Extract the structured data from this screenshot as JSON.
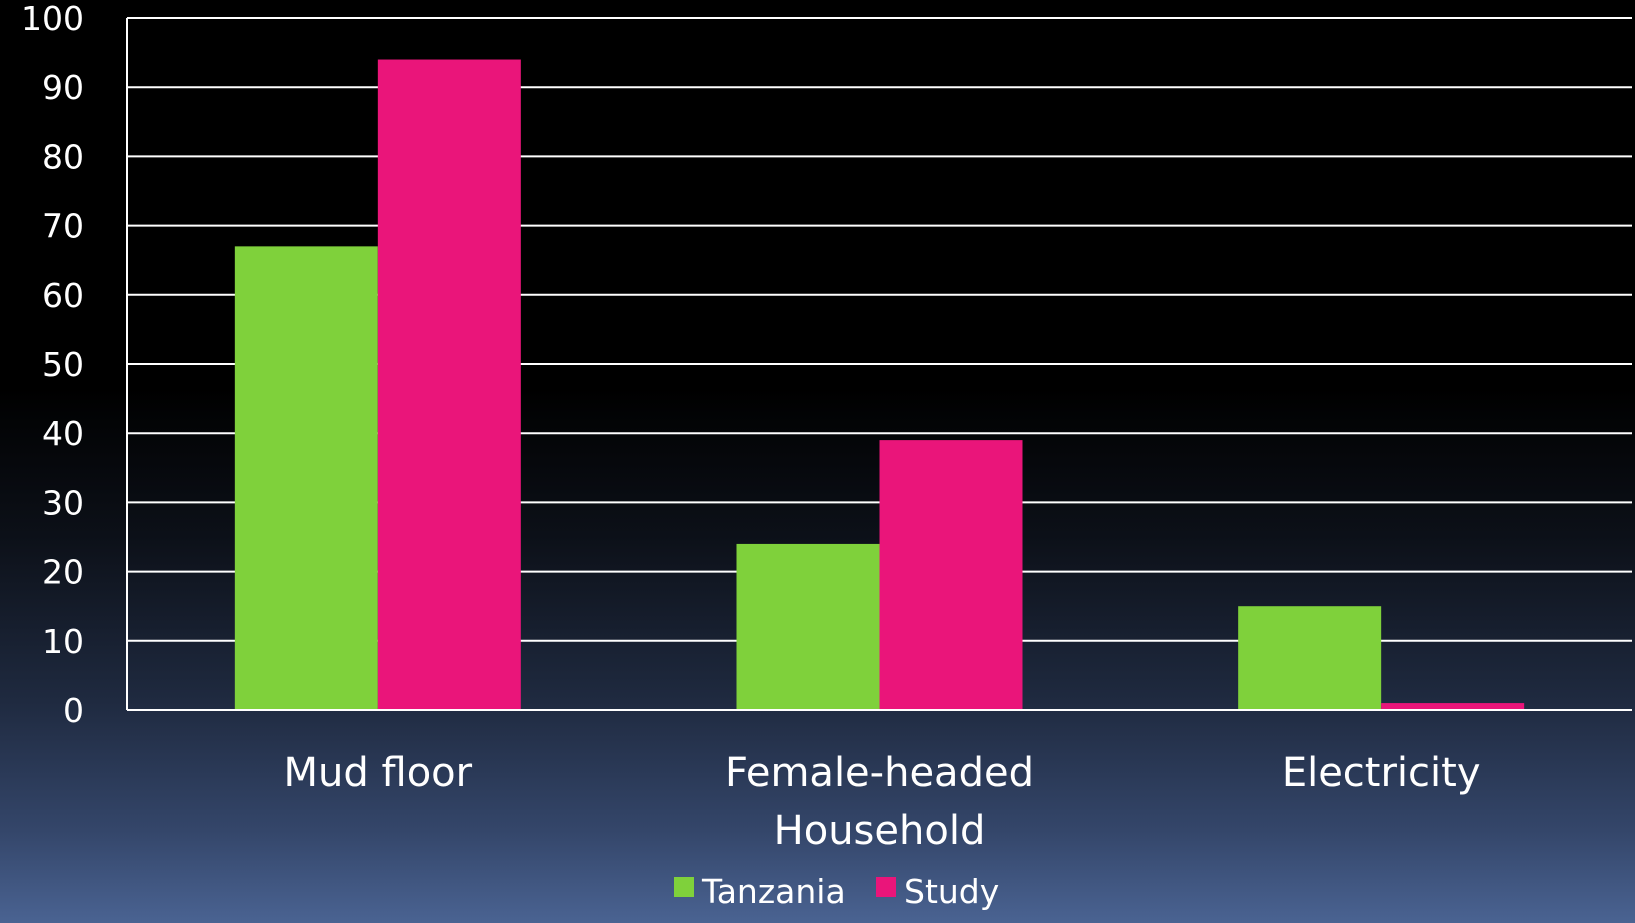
{
  "chart_data": {
    "type": "bar",
    "title": "",
    "xlabel": "",
    "ylabel": "",
    "categories": [
      [
        "Mud floor"
      ],
      [
        "Female-headed",
        "Household"
      ],
      [
        "Electricity"
      ]
    ],
    "series": [
      {
        "name": "Tanzania",
        "color": "#7fd13b",
        "values": [
          67,
          24,
          15
        ]
      },
      {
        "name": "Study",
        "color": "#ea157a",
        "values": [
          94,
          39,
          1
        ]
      }
    ],
    "ylim": [
      0,
      100
    ],
    "yticks": [
      "0",
      "10",
      "20",
      "30",
      "40",
      "50",
      "60",
      "70",
      "80",
      "90",
      "100"
    ],
    "grid": true,
    "legend_position": "bottom"
  }
}
